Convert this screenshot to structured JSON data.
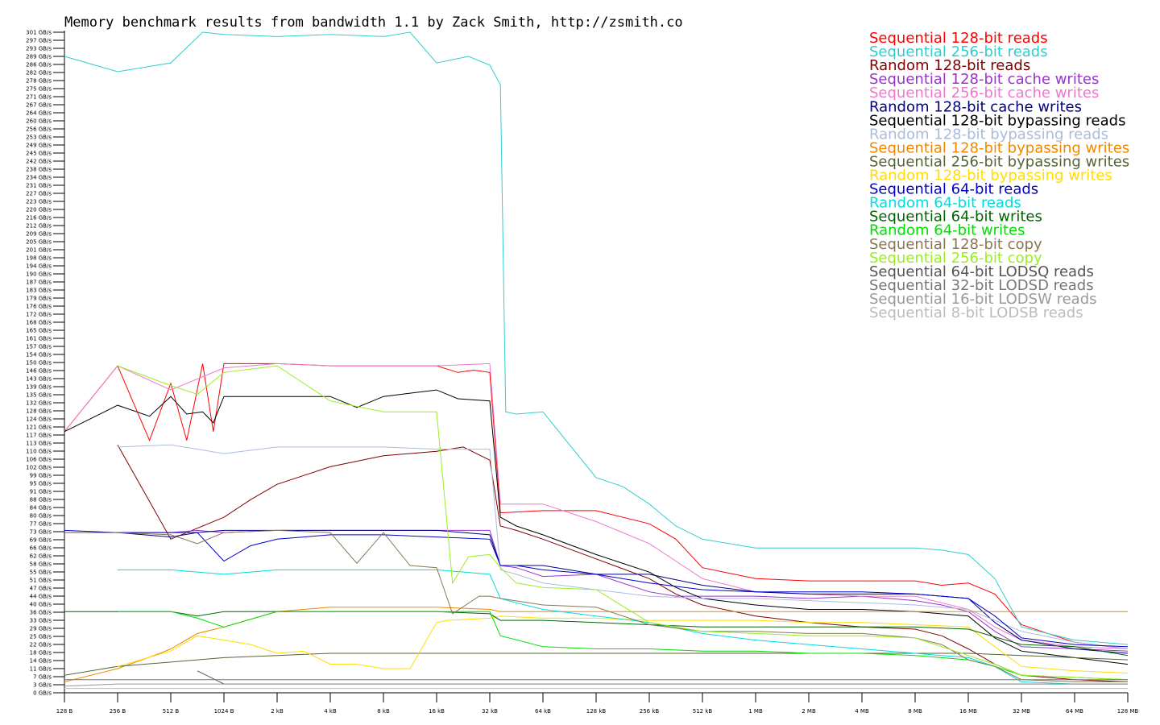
{
  "chart_data": {
    "type": "line",
    "title": "Memory benchmark results from bandwidth 1.1 by Zack Smith, http://zsmith.co",
    "xlabel": "",
    "ylabel": "",
    "x_scale": "log2",
    "x_ticks": [
      "128 B",
      "256 B",
      "512 B",
      "1024 B",
      "2 kB",
      "4 kB",
      "8 kB",
      "16 kB",
      "32 kB",
      "64 kB",
      "128 kB",
      "256 kB",
      "512 kB",
      "1 MB",
      "2 MB",
      "4 MB",
      "8 MB",
      "16 MB",
      "32 MB",
      "64 MB",
      "128 MB"
    ],
    "y_ticks": [
      "0 GB/s",
      "3 GB/s",
      "7 GB/s",
      "11 GB/s",
      "14 GB/s",
      "18 GB/s",
      "22 GB/s",
      "25 GB/s",
      "29 GB/s",
      "33 GB/s",
      "36 GB/s",
      "40 GB/s",
      "44 GB/s",
      "47 GB/s",
      "51 GB/s",
      "55 GB/s",
      "58 GB/s",
      "62 GB/s",
      "66 GB/s",
      "69 GB/s",
      "73 GB/s",
      "77 GB/s",
      "80 GB/s",
      "84 GB/s",
      "88 GB/s",
      "91 GB/s",
      "95 GB/s",
      "99 GB/s",
      "102 GB/s",
      "106 GB/s",
      "110 GB/s",
      "113 GB/s",
      "117 GB/s",
      "121 GB/s",
      "124 GB/s",
      "128 GB/s",
      "132 GB/s",
      "135 GB/s",
      "139 GB/s",
      "143 GB/s",
      "146 GB/s",
      "150 GB/s",
      "154 GB/s",
      "157 GB/s",
      "161 GB/s",
      "165 GB/s",
      "168 GB/s",
      "172 GB/s",
      "176 GB/s",
      "179 GB/s",
      "183 GB/s",
      "187 GB/s",
      "190 GB/s",
      "194 GB/s",
      "198 GB/s",
      "201 GB/s",
      "205 GB/s",
      "209 GB/s",
      "212 GB/s",
      "216 GB/s",
      "220 GB/s",
      "223 GB/s",
      "227 GB/s",
      "231 GB/s",
      "234 GB/s",
      "238 GB/s",
      "242 GB/s",
      "245 GB/s",
      "249 GB/s",
      "253 GB/s",
      "256 GB/s",
      "260 GB/s",
      "264 GB/s",
      "267 GB/s",
      "271 GB/s",
      "275 GB/s",
      "278 GB/s",
      "282 GB/s",
      "286 GB/s",
      "289 GB/s",
      "293 GB/s",
      "297 GB/s",
      "301 GB/s"
    ],
    "ylim": [
      0,
      301
    ],
    "xlim_log2": [
      7,
      27
    ],
    "legend_position": "top-right",
    "series": [
      {
        "name": "Sequential 128-bit reads",
        "color": "#ff0000",
        "x": [
          7,
          8,
          8.6,
          9,
          9.3,
          9.6,
          9.8,
          10,
          11,
          12,
          13,
          14,
          14.4,
          14.7,
          15,
          15.2,
          16,
          17,
          18,
          18.5,
          19,
          20,
          21,
          22,
          23,
          23.5,
          24,
          24.5,
          25,
          26,
          27
        ],
        "y": [
          119,
          149,
          115,
          141,
          115,
          150,
          119,
          150,
          150,
          149,
          149,
          149,
          146,
          147,
          146,
          82,
          83,
          83,
          77,
          70,
          57,
          52,
          51,
          51,
          51,
          49,
          50,
          45,
          31,
          23,
          20
        ]
      },
      {
        "name": "Sequential 256-bit reads",
        "color": "#33cccc",
        "x": [
          7,
          8,
          9,
          9.6,
          10,
          11,
          12,
          13,
          13.5,
          14,
          14.6,
          15,
          15.2,
          15.3,
          15.5,
          16,
          17,
          17.5,
          18,
          18.5,
          19,
          20,
          21,
          22,
          23,
          23.5,
          24,
          24.5,
          25,
          26,
          27
        ],
        "y": [
          290,
          283,
          287,
          301,
          300,
          299,
          300,
          299,
          301,
          287,
          290,
          286,
          277,
          128,
          127,
          128,
          98,
          94,
          86,
          76,
          70,
          66,
          66,
          66,
          66,
          65,
          63,
          52,
          30,
          24,
          22
        ]
      },
      {
        "name": "Random 128-bit reads",
        "color": "#800000",
        "x": [
          8,
          9,
          9.5,
          10,
          10.5,
          11,
          12,
          13,
          14,
          14.5,
          15,
          15.2,
          15.5,
          16,
          17,
          18,
          18.5,
          19,
          20,
          21,
          22,
          23,
          23.5,
          24,
          24.5,
          25,
          26,
          27
        ],
        "y": [
          113,
          70,
          75,
          80,
          88,
          95,
          103,
          108,
          110,
          112,
          106,
          76,
          74,
          70,
          61,
          52,
          45,
          40,
          35,
          32,
          30,
          29,
          26,
          20,
          13,
          8,
          6,
          5
        ]
      },
      {
        "name": "Sequential 128-bit cache writes",
        "color": "#9933cc",
        "x": [
          7,
          8,
          9,
          9.5,
          10,
          11,
          12,
          13,
          14,
          15,
          15.2,
          15.5,
          16,
          17,
          18,
          18.5,
          19,
          20,
          21,
          22,
          23,
          23.5,
          24,
          24.5,
          25,
          26,
          27
        ],
        "y": [
          73,
          73,
          73,
          74,
          73,
          74,
          74,
          74,
          74,
          74,
          58,
          57,
          53,
          54,
          46,
          44,
          44,
          44,
          43,
          44,
          42,
          40,
          37,
          28,
          21,
          20,
          19
        ]
      },
      {
        "name": "Sequential 256-bit cache writes",
        "color": "#ee77cc",
        "x": [
          7,
          8,
          9,
          10,
          11,
          12,
          13,
          14,
          15,
          15.2,
          15.5,
          16,
          17,
          18,
          18.5,
          19,
          20,
          21,
          22,
          23,
          23.5,
          24,
          24.5,
          25,
          26,
          27
        ],
        "y": [
          119,
          149,
          138,
          148,
          150,
          149,
          149,
          149,
          150,
          86,
          86,
          86,
          78,
          68,
          60,
          52,
          46,
          45,
          44,
          44,
          41,
          38,
          30,
          24,
          21,
          20
        ]
      },
      {
        "name": "Random 128-bit cache writes",
        "color": "#000080",
        "x": [
          8,
          9,
          9.5,
          10,
          11,
          12,
          13,
          14,
          14.5,
          15,
          15.2,
          15.5,
          16,
          17,
          18,
          19,
          20,
          21,
          22,
          23,
          24,
          24.5,
          25,
          26,
          27
        ],
        "y": [
          73,
          71,
          73,
          74,
          74,
          74,
          74,
          74,
          73,
          72,
          58,
          58,
          58,
          54,
          54,
          49,
          46,
          45,
          45,
          45,
          43,
          32,
          24,
          20,
          18
        ]
      },
      {
        "name": "Sequential 128-bit bypassing reads",
        "color": "#000000",
        "x": [
          7,
          8,
          8.6,
          9,
          9.3,
          9.6,
          9.8,
          10,
          11,
          12,
          12.5,
          13,
          14,
          14.4,
          15,
          15.2,
          15.5,
          16,
          17,
          18,
          18.5,
          19,
          20,
          21,
          22,
          23,
          24,
          24.5,
          25,
          26,
          27
        ],
        "y": [
          119,
          131,
          126,
          135,
          127,
          128,
          123,
          135,
          135,
          135,
          130,
          135,
          138,
          134,
          133,
          80,
          76,
          72,
          63,
          55,
          48,
          43,
          40,
          38,
          38,
          37,
          35,
          25,
          19,
          16,
          13
        ]
      },
      {
        "name": "Random 128-bit bypassing reads",
        "color": "#aabbdd",
        "x": [
          8,
          9,
          10,
          11,
          12,
          13,
          14,
          15,
          15.2,
          15.5,
          16,
          17,
          18,
          19,
          20,
          21,
          22,
          23,
          24,
          25,
          26,
          27
        ],
        "y": [
          112,
          113,
          109,
          112,
          112,
          112,
          111,
          111,
          56,
          54,
          50,
          47,
          44,
          43,
          43,
          42,
          41,
          40,
          38,
          28,
          23,
          20
        ]
      },
      {
        "name": "Sequential 128-bit bypassing writes",
        "color": "#ee8800",
        "x": [
          7,
          8,
          8.8,
          9,
          9.5,
          10,
          11,
          12,
          13,
          14,
          15,
          15.2,
          16,
          17,
          18,
          19,
          20,
          21,
          22,
          23,
          24,
          25,
          26,
          27
        ],
        "y": [
          5,
          11,
          18,
          20,
          27,
          30,
          37,
          39,
          39,
          39,
          38,
          37,
          37,
          37,
          37,
          37,
          37,
          37,
          37,
          37,
          37,
          37,
          37,
          37
        ]
      },
      {
        "name": "Sequential 256-bit bypassing writes",
        "color": "#556633",
        "x": [
          7,
          8,
          9,
          9.5,
          10,
          11,
          12,
          13,
          14,
          15,
          16,
          17,
          18,
          19,
          20,
          21,
          22,
          23,
          24,
          25,
          26,
          27
        ],
        "y": [
          8,
          12,
          14,
          15,
          16,
          17,
          18,
          18,
          18,
          18,
          18,
          18,
          18,
          18,
          18,
          18,
          18,
          18,
          18,
          17,
          16,
          15
        ]
      },
      {
        "name": "Random 128-bit bypassing writes",
        "color": "#ffdd00",
        "x": [
          8,
          9,
          9.5,
          10,
          10.5,
          11,
          11.5,
          12,
          12.5,
          13,
          13.5,
          14,
          14.2,
          15,
          15.2,
          16,
          17,
          18,
          19,
          20,
          21,
          22,
          23,
          24,
          25,
          26,
          27
        ],
        "y": [
          12,
          19,
          26,
          24,
          22,
          18,
          19,
          13,
          13,
          11,
          11,
          32,
          33,
          34,
          35,
          34,
          34,
          33,
          33,
          33,
          32,
          32,
          31,
          30,
          12,
          10,
          9
        ]
      },
      {
        "name": "Sequential 64-bit reads",
        "color": "#0000cc",
        "x": [
          7,
          8,
          9,
          9.5,
          10,
          10.5,
          11,
          12,
          13,
          14,
          15,
          15.2,
          15.5,
          16,
          17,
          18,
          19,
          20,
          21,
          22,
          23,
          24,
          24.5,
          25,
          26,
          27
        ],
        "y": [
          74,
          73,
          73,
          73,
          60,
          67,
          70,
          72,
          72,
          71,
          70,
          58,
          58,
          56,
          54,
          50,
          47,
          46,
          46,
          46,
          45,
          43,
          35,
          25,
          22,
          21
        ]
      },
      {
        "name": "Random 64-bit reads",
        "color": "#00dddd",
        "x": [
          8,
          9,
          10,
          11,
          12,
          13,
          14,
          15,
          15.2,
          15.5,
          16,
          17,
          18,
          19,
          20,
          21,
          22,
          23,
          24,
          24.5,
          25,
          26,
          27
        ],
        "y": [
          56,
          56,
          54,
          56,
          56,
          56,
          56,
          54,
          43,
          41,
          38,
          35,
          32,
          27,
          24,
          22,
          20,
          18,
          16,
          12,
          5,
          4,
          4
        ]
      },
      {
        "name": "Sequential 64-bit writes",
        "color": "#006600",
        "x": [
          7,
          8,
          9,
          9.5,
          10,
          11,
          12,
          13,
          14,
          15,
          15.2,
          16,
          17,
          18,
          19,
          20,
          21,
          22,
          23,
          24,
          25,
          26,
          27
        ],
        "y": [
          37,
          37,
          37,
          35,
          37,
          37,
          37,
          37,
          37,
          36,
          33,
          33,
          32,
          31,
          30,
          30,
          30,
          30,
          30,
          29,
          22,
          21,
          17
        ]
      },
      {
        "name": "Random 64-bit writes",
        "color": "#00dd00",
        "x": [
          8,
          9,
          9.5,
          10,
          11,
          12,
          13,
          14,
          15,
          15.2,
          16,
          17,
          18,
          19,
          20,
          21,
          22,
          23,
          24,
          24.5,
          25,
          26,
          27
        ],
        "y": [
          37,
          37,
          34,
          30,
          37,
          37,
          37,
          37,
          37,
          26,
          21,
          20,
          20,
          19,
          19,
          18,
          18,
          17,
          15,
          12,
          8,
          7,
          6
        ]
      },
      {
        "name": "Sequential 128-bit copy",
        "color": "#887755",
        "x": [
          7,
          8,
          9,
          9.5,
          10,
          11,
          12,
          12.5,
          13,
          13.5,
          14,
          14.3,
          14.8,
          15,
          15.2,
          16,
          17,
          18,
          19,
          20,
          21,
          22,
          23,
          23.5,
          24,
          24.5,
          25,
          26,
          27
        ],
        "y": [
          73,
          73,
          72,
          68,
          73,
          74,
          73,
          59,
          73,
          58,
          57,
          36,
          44,
          44,
          43,
          40,
          39,
          31,
          28,
          28,
          27,
          27,
          25,
          22,
          15,
          12,
          6,
          5,
          5
        ]
      },
      {
        "name": "Sequential 256-bit copy",
        "color": "#99ee22",
        "x": [
          8,
          9,
          9.5,
          10,
          11,
          12,
          13,
          14,
          14.3,
          14.6,
          15,
          15.2,
          15.5,
          16,
          17,
          18,
          19,
          20,
          21,
          22,
          23,
          24,
          24.5,
          25,
          26,
          27
        ],
        "y": [
          149,
          140,
          136,
          146,
          149,
          133,
          128,
          128,
          50,
          62,
          63,
          57,
          50,
          48,
          47,
          32,
          28,
          27,
          26,
          26,
          25,
          17,
          13,
          8,
          7,
          6
        ]
      },
      {
        "name": "Sequential 64-bit LODSQ reads",
        "color": "#555555",
        "x": [
          9.5,
          10,
          10.5,
          11,
          12,
          13,
          14,
          15,
          16,
          17,
          18,
          19,
          20,
          21,
          22,
          23,
          24,
          25,
          26,
          27
        ],
        "y": [
          10,
          4,
          4,
          4,
          4,
          4,
          4,
          4,
          4,
          4,
          4,
          4,
          4,
          4,
          4,
          4,
          4,
          4,
          4,
          4
        ]
      },
      {
        "name": "Sequential 32-bit LODSD reads",
        "color": "#777777",
        "x": [
          7,
          8,
          9,
          10,
          11,
          12,
          13,
          14,
          15,
          16,
          17,
          18,
          19,
          20,
          21,
          22,
          23,
          24,
          25,
          26,
          27
        ],
        "y": [
          6,
          6,
          6,
          6,
          6,
          6,
          6,
          6,
          6,
          6,
          6,
          6,
          6,
          6,
          6,
          6,
          6,
          6,
          6,
          6,
          6
        ]
      },
      {
        "name": "Sequential 16-bit LODSW reads",
        "color": "#999999",
        "x": [
          7,
          8,
          9,
          10,
          11,
          12,
          13,
          14,
          15,
          16,
          17,
          18,
          19,
          20,
          21,
          22,
          23,
          24,
          25,
          26,
          27
        ],
        "y": [
          3,
          4,
          4,
          4,
          4,
          4,
          4,
          4,
          4,
          4,
          4,
          4,
          4,
          4,
          4,
          4,
          4,
          4,
          4,
          4,
          4
        ]
      },
      {
        "name": "Sequential 8-bit LODSB reads",
        "color": "#bbbbbb",
        "x": [
          7,
          8,
          9,
          10,
          11,
          12,
          13,
          14,
          15,
          16,
          17,
          18,
          19,
          20,
          21,
          22,
          23,
          24,
          25,
          26,
          27
        ],
        "y": [
          2,
          2,
          2,
          2,
          2,
          2,
          2,
          2,
          2,
          2,
          2,
          2,
          2,
          2,
          2,
          2,
          2,
          2,
          2,
          2,
          2
        ]
      }
    ]
  }
}
